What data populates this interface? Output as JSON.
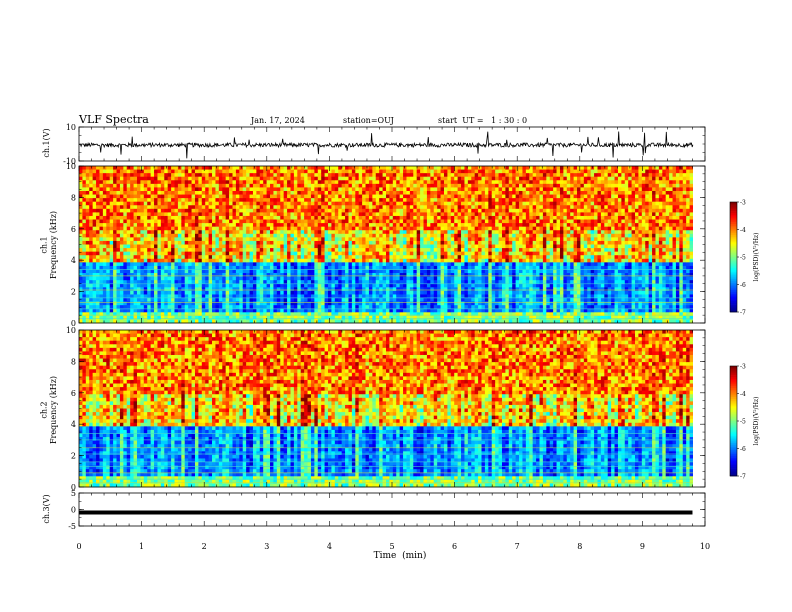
{
  "header": {
    "title": "VLF Spectra",
    "date": "Jan. 17, 2024",
    "station": "station=OUJ",
    "start": "start  UT =   1 : 30 : 0"
  },
  "chart_data": [
    {
      "type": "line",
      "panel": "ch1-waveform",
      "ylabel": "ch.1(V)",
      "ylim": [
        -10,
        10
      ],
      "yticks": [
        "10",
        "-10"
      ],
      "xlim": [
        0,
        10
      ],
      "description_values": {
        "baseline": 0,
        "noise_amplitude": 1.5,
        "spike_amplitude": 6
      }
    },
    {
      "type": "heatmap",
      "panel": "ch1-spectrogram",
      "ylabel": "ch.1 Frequency (kHz)",
      "ylim": [
        0,
        10
      ],
      "yticks": [
        "0",
        "2",
        "4",
        "6",
        "8",
        "10"
      ],
      "xlim": [
        0,
        9.8
      ],
      "colorbar": {
        "label": "log(PSD)(V²/Hz)",
        "range": [
          -7,
          -3
        ],
        "ticks": [
          "-3",
          "-4",
          "-5",
          "-6",
          "-7"
        ]
      }
    },
    {
      "type": "heatmap",
      "panel": "ch2-spectrogram",
      "ylabel": "ch.2 Frequency (kHz)",
      "ylim": [
        0,
        10
      ],
      "yticks": [
        "0",
        "2",
        "4",
        "6",
        "8",
        "10"
      ],
      "xlim": [
        0,
        9.8
      ],
      "colorbar": {
        "label": "log(PSD)(V²/Hz)",
        "range": [
          -7,
          -3
        ],
        "ticks": [
          "-3",
          "-4",
          "-5",
          "-6",
          "-7"
        ]
      }
    },
    {
      "type": "line",
      "panel": "ch3-waveform",
      "ylabel": "ch.3(V)",
      "ylim": [
        -5,
        5
      ],
      "yticks": [
        "5",
        "0",
        "-5"
      ],
      "xlim": [
        0,
        10
      ],
      "series": [
        {
          "x": [
            0,
            9.8
          ],
          "y": [
            0,
            0
          ]
        }
      ]
    }
  ],
  "xaxis": {
    "label": "Time  (min)",
    "ticks": [
      "0",
      "1",
      "2",
      "3",
      "4",
      "5",
      "6",
      "7",
      "8",
      "9",
      "10"
    ],
    "range": [
      0,
      10
    ]
  },
  "colors": {
    "jet": [
      "#00008f",
      "#0000ff",
      "#0080ff",
      "#00ffff",
      "#80ff80",
      "#ffff00",
      "#ff8000",
      "#ff0000",
      "#800000"
    ]
  }
}
